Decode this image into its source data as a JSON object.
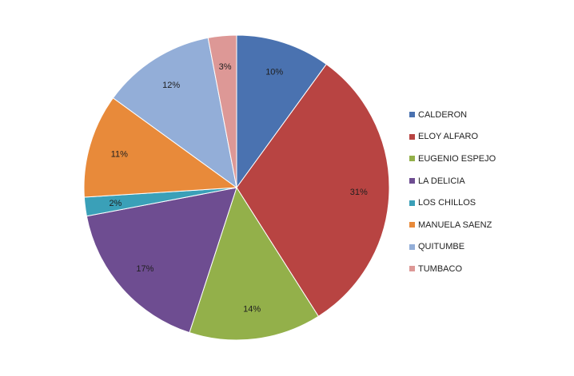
{
  "chart_data": {
    "type": "pie",
    "start_angle_deg": 90,
    "direction": "clockwise",
    "categories": [
      "CALDERON",
      "ELOY ALFARO",
      "EUGENIO ESPEJO",
      "LA DELICIA",
      "LOS CHILLOS",
      "MANUELA SAENZ",
      "QUITUMBE",
      "TUMBACO"
    ],
    "values": [
      10,
      31,
      14,
      17,
      2,
      11,
      12,
      3
    ],
    "labels": [
      "10%",
      "31%",
      "14%",
      "17%",
      "2%",
      "11%",
      "12%",
      "3%"
    ],
    "colors": [
      "#4a72b0",
      "#b84442",
      "#93b04a",
      "#6e4d91",
      "#3aa0b8",
      "#e88a3a",
      "#93aed8",
      "#dd9896"
    ],
    "legend_position": "right"
  }
}
